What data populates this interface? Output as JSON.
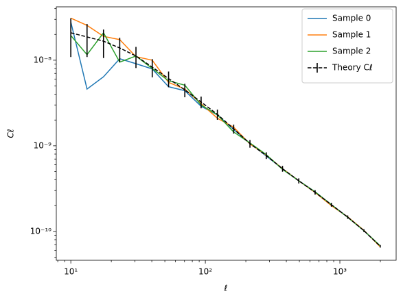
{
  "chart_data": {
    "type": "line",
    "x_label": "ℓ",
    "y_label": "Cℓ",
    "x": [
      10,
      13.2,
      17.5,
      23.1,
      30.5,
      40.3,
      53.3,
      70.4,
      93.0,
      122.9,
      162.4,
      214.6,
      283.6,
      374.8,
      495.3,
      654.5,
      865.0,
      1143,
      1510,
      1995
    ],
    "series": [
      {
        "name": "Sample 0",
        "color": "#1f77b4",
        "linestyle": "solid",
        "values": [
          2.8e-08,
          4.6e-09,
          6.4e-09,
          1.04e-08,
          9.1e-09,
          7.9e-09,
          4.9e-09,
          4.4e-09,
          2.9e-09,
          2.3e-09,
          1.55e-09,
          1.07e-09,
          7.6e-10,
          5.4e-10,
          3.9e-10,
          2.9e-10,
          2.05e-10,
          1.47e-10,
          1.02e-10,
          6.7e-11
        ]
      },
      {
        "name": "Sample 1",
        "color": "#ff7f0e",
        "linestyle": "solid",
        "values": [
          3.1e-08,
          2.55e-08,
          1.9e-08,
          1.74e-08,
          1.1e-08,
          1e-08,
          5.5e-09,
          4.6e-09,
          3.1e-09,
          2.1e-09,
          1.65e-09,
          1.05e-09,
          7.8e-10,
          5.4e-10,
          3.9e-10,
          2.85e-10,
          2e-10,
          1.48e-10,
          1.03e-10,
          6.6e-11
        ]
      },
      {
        "name": "Sample 2",
        "color": "#2ca02c",
        "linestyle": "solid",
        "values": [
          1.94e-08,
          1.16e-08,
          2.09e-08,
          9.5e-09,
          1.12e-08,
          8e-09,
          5.75e-09,
          5.1e-09,
          3e-09,
          2.3e-09,
          1.45e-09,
          1.08e-09,
          7.9e-10,
          5.3e-10,
          3.9e-10,
          2.9e-10,
          2.05e-10,
          1.46e-10,
          1.02e-10,
          6.8e-11
        ]
      },
      {
        "name": "Theory Cℓ",
        "color": "#000000",
        "linestyle": "dashed",
        "values": [
          2.09e-08,
          1.87e-08,
          1.67e-08,
          1.39e-08,
          1.12e-08,
          8.3e-09,
          6.1e-09,
          4.5e-09,
          3.25e-09,
          2.33e-09,
          1.58e-09,
          1.06e-09,
          7.7e-10,
          5.4e-10,
          3.9e-10,
          2.86e-10,
          2.05e-10,
          1.47e-10,
          1.02e-10,
          6.7e-11
        ],
        "errors": [
          1e-08,
          7.8e-09,
          6.1e-09,
          4.4e-09,
          3.1e-09,
          2e-09,
          1.27e-09,
          8.1e-10,
          5.1e-10,
          3.2e-10,
          1.9e-10,
          1.1e-10,
          6.9e-11,
          4.2e-11,
          2.7e-11,
          1.7e-11,
          1.07e-11,
          6.6e-12,
          4e-12,
          2.3e-12
        ]
      }
    ],
    "xlog": true,
    "ylog": true,
    "xlim": [
      7.8,
      2620
    ],
    "ylim": [
      4.6e-11,
      4.2e-08
    ],
    "xticks": [
      {
        "value": 10,
        "label": "10¹"
      },
      {
        "value": 100,
        "label": "10²"
      },
      {
        "value": 1000,
        "label": "10³"
      }
    ],
    "yticks": [
      {
        "value": 1e-10,
        "label": "10⁻¹⁰"
      },
      {
        "value": 1e-09,
        "label": "10⁻⁹"
      },
      {
        "value": 1e-08,
        "label": "10⁻⁸"
      }
    ],
    "xminorticks": [
      8,
      9,
      20,
      30,
      40,
      50,
      60,
      70,
      80,
      90,
      200,
      300,
      400,
      500,
      600,
      700,
      800,
      900,
      2000
    ],
    "yminorticks": [
      5e-11,
      6e-11,
      7e-11,
      8e-11,
      9e-11,
      2e-10,
      3e-10,
      4e-10,
      5e-10,
      6e-10,
      7e-10,
      8e-10,
      9e-10,
      2e-09,
      3e-09,
      4e-09,
      5e-09,
      6e-09,
      7e-09,
      8e-09,
      9e-09,
      2e-08,
      3e-08,
      4e-08
    ],
    "grid": false,
    "legend": "upper right"
  }
}
